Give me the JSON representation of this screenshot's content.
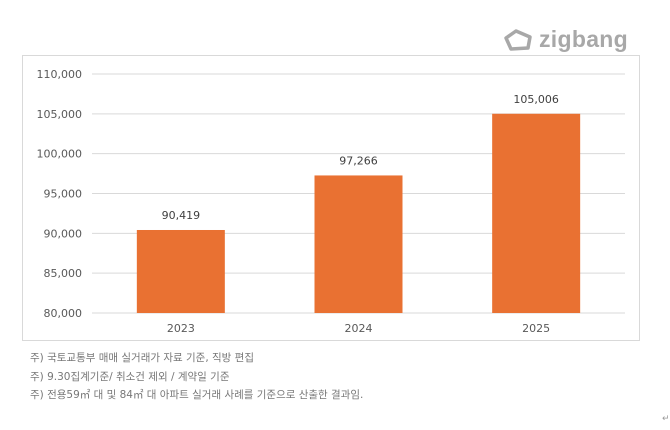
{
  "logo": {
    "text": "zigbang",
    "icon": "zigbang-house-icon"
  },
  "chart_data": {
    "type": "bar",
    "categories": [
      "2023",
      "2024",
      "2025"
    ],
    "values": [
      90419,
      97266,
      105006
    ],
    "data_labels": [
      "90,419",
      "97,266",
      "105,006"
    ],
    "ylim": [
      80000,
      110000
    ],
    "y_ticks": [
      "80,000",
      "85,000",
      "90,000",
      "95,000",
      "100,000",
      "105,000",
      "110,000"
    ],
    "y_tick_values": [
      80000,
      85000,
      90000,
      95000,
      100000,
      105000,
      110000
    ],
    "grid": true,
    "bar_color": "#E97132",
    "title": "",
    "xlabel": "",
    "ylabel": ""
  },
  "notes": [
    "주) 국토교통부 매매 실거래가 자료 기준, 직방 편집",
    "주) 9.30집계기준/ 취소건 제외 / 계약일 기준",
    "주) 전용59㎡ 대 및 84㎡ 대 아파트 실거래 사례를 기준으로 산출한 결과임."
  ],
  "paragraph_mark": "↵"
}
